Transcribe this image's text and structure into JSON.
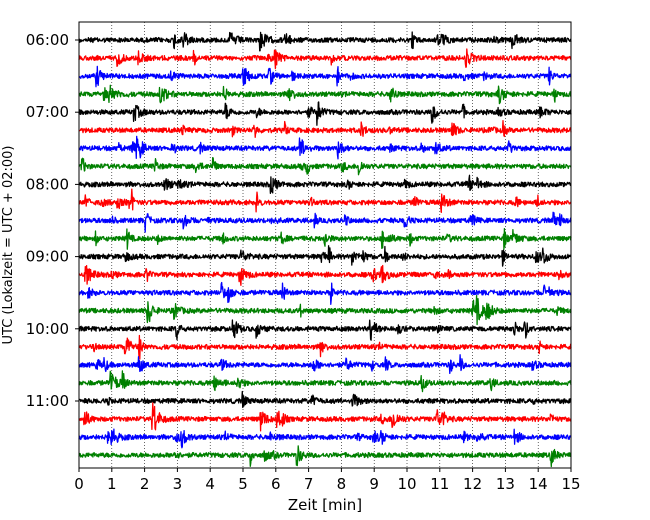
{
  "chart_data": {
    "type": "line",
    "title": "",
    "xlabel": "Zeit  [min]",
    "ylabel": "UTC (Lokalzeit = UTC + 02:00)",
    "xlim": [
      0,
      15
    ],
    "x_ticks": [
      0,
      1,
      2,
      3,
      4,
      5,
      6,
      7,
      8,
      9,
      10,
      11,
      12,
      13,
      14,
      15
    ],
    "y_tick_labels": [
      "06:00",
      "07:00",
      "08:00",
      "09:00",
      "10:00",
      "11:00"
    ],
    "y_tick_traces": [
      0,
      4,
      8,
      12,
      16,
      20
    ],
    "grid": "vertical dotted",
    "trace_duration_min": 15,
    "trace_colors": [
      "#000000",
      "#ff0000",
      "#0000ff",
      "#008000"
    ],
    "series": [
      {
        "start": "06:00",
        "color": "#000000"
      },
      {
        "start": "06:15",
        "color": "#ff0000"
      },
      {
        "start": "06:30",
        "color": "#0000ff"
      },
      {
        "start": "06:45",
        "color": "#008000"
      },
      {
        "start": "07:00",
        "color": "#000000"
      },
      {
        "start": "07:15",
        "color": "#ff0000"
      },
      {
        "start": "07:30",
        "color": "#0000ff"
      },
      {
        "start": "07:45",
        "color": "#008000"
      },
      {
        "start": "08:00",
        "color": "#000000"
      },
      {
        "start": "08:15",
        "color": "#ff0000"
      },
      {
        "start": "08:30",
        "color": "#0000ff"
      },
      {
        "start": "08:45",
        "color": "#008000"
      },
      {
        "start": "09:00",
        "color": "#000000"
      },
      {
        "start": "09:15",
        "color": "#ff0000"
      },
      {
        "start": "09:30",
        "color": "#0000ff"
      },
      {
        "start": "09:45",
        "color": "#008000"
      },
      {
        "start": "10:00",
        "color": "#000000"
      },
      {
        "start": "10:15",
        "color": "#ff0000"
      },
      {
        "start": "10:30",
        "color": "#0000ff"
      },
      {
        "start": "10:45",
        "color": "#008000"
      },
      {
        "start": "11:00",
        "color": "#000000"
      },
      {
        "start": "11:15",
        "color": "#ff0000"
      },
      {
        "start": "11:30",
        "color": "#0000ff"
      },
      {
        "start": "11:45",
        "color": "#008000"
      }
    ]
  }
}
